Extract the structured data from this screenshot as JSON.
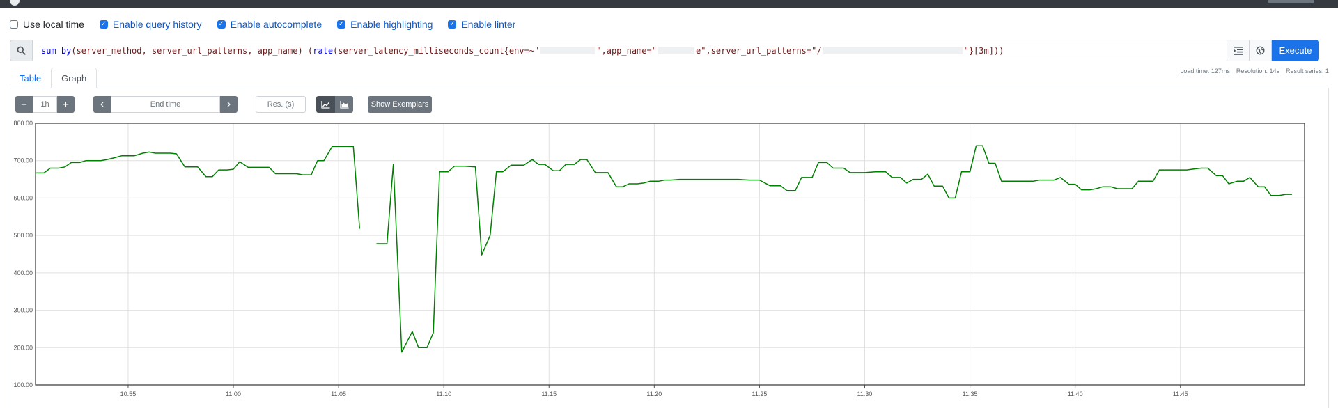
{
  "settings": [
    {
      "label": "Use local time",
      "checked": false
    },
    {
      "label": "Enable query history",
      "checked": true
    },
    {
      "label": "Enable autocomplete",
      "checked": true
    },
    {
      "label": "Enable highlighting",
      "checked": true
    },
    {
      "label": "Enable linter",
      "checked": true
    }
  ],
  "query": {
    "kw": "sum by",
    "part1": " (server_method, server_url_patterns, app_name) (",
    "fn": "rate",
    "part2": "(server_latency_milliseconds_count{env=~\"",
    "part3": "\",app_name=\"",
    "part4": "e\",server_url_patterns=\"/",
    "part5": "\"}[3m]))"
  },
  "buttons": {
    "execute": "Execute",
    "show_exemplars": "Show Exemplars"
  },
  "stats": {
    "load_time": "Load time: 127ms",
    "resolution": "Resolution: 14s",
    "result_series": "Result series: 1"
  },
  "tabs": [
    {
      "label": "Table"
    },
    {
      "label": "Graph"
    }
  ],
  "graph_controls": {
    "minus": "−",
    "range": "1h",
    "plus": "+",
    "prev": "‹",
    "end_time_placeholder": "End time",
    "next": "›",
    "res_placeholder": "Res. (s)"
  },
  "colors": {
    "line": "#008000",
    "accent": "#1a73e8",
    "grid": "#e0e0e0"
  },
  "chart_data": {
    "type": "line",
    "ylim": [
      100,
      800
    ],
    "yticks": [
      "800.00",
      "700.00",
      "600.00",
      "500.00",
      "400.00",
      "300.00",
      "200.00",
      "100.00"
    ],
    "xticks": [
      "10:55",
      "11:00",
      "11:05",
      "11:10",
      "11:15",
      "11:20",
      "11:25",
      "11:30",
      "11:35",
      "11:40",
      "11:45"
    ],
    "x_range_minutes": [
      10.6,
      70.9
    ],
    "x_tick_minutes": [
      15,
      20,
      25,
      30,
      35,
      40,
      45,
      50,
      55,
      60,
      65
    ],
    "grid": true,
    "series": [
      {
        "segments": [
          [
            [
              10.6,
              667
            ],
            [
              11.0,
              667
            ],
            [
              11.3,
              680
            ],
            [
              11.7,
              680
            ],
            [
              12.0,
              683
            ],
            [
              12.3,
              695
            ],
            [
              12.7,
              695
            ],
            [
              13.0,
              700
            ],
            [
              13.3,
              700
            ],
            [
              13.7,
              700
            ],
            [
              14.0,
              703
            ],
            [
              14.3,
              707
            ],
            [
              14.7,
              713
            ],
            [
              15.0,
              713
            ],
            [
              15.3,
              713
            ],
            [
              15.7,
              720
            ],
            [
              16.0,
              723
            ],
            [
              16.3,
              720
            ],
            [
              16.7,
              720
            ],
            [
              17.0,
              720
            ],
            [
              17.3,
              718
            ],
            [
              17.7,
              683
            ],
            [
              18.0,
              683
            ],
            [
              18.3,
              683
            ],
            [
              18.7,
              657
            ],
            [
              19.0,
              657
            ],
            [
              19.3,
              675
            ],
            [
              19.7,
              675
            ],
            [
              20.0,
              677
            ],
            [
              20.3,
              697
            ],
            [
              20.7,
              682
            ],
            [
              21.0,
              682
            ],
            [
              21.3,
              682
            ],
            [
              21.7,
              682
            ],
            [
              22.0,
              665
            ],
            [
              22.3,
              665
            ],
            [
              22.7,
              665
            ],
            [
              23.0,
              665
            ],
            [
              23.3,
              662
            ],
            [
              23.7,
              662
            ],
            [
              24.0,
              700
            ],
            [
              24.3,
              700
            ],
            [
              24.7,
              738
            ],
            [
              25.0,
              738
            ],
            [
              25.3,
              738
            ],
            [
              25.7,
              738
            ],
            [
              26.0,
              518
            ]
          ],
          [
            [
              26.8,
              478
            ],
            [
              27.3,
              478
            ],
            [
              27.6,
              690
            ],
            [
              28.0,
              188
            ],
            [
              28.5,
              243
            ],
            [
              28.8,
              200
            ],
            [
              29.2,
              200
            ],
            [
              29.5,
              240
            ],
            [
              29.8,
              670
            ],
            [
              30.2,
              670
            ],
            [
              30.5,
              685
            ],
            [
              31.0,
              685
            ],
            [
              31.5,
              683
            ],
            [
              31.8,
              448
            ],
            [
              32.2,
              500
            ],
            [
              32.5,
              670
            ],
            [
              32.8,
              670
            ],
            [
              33.2,
              688
            ],
            [
              33.5,
              688
            ],
            [
              33.8,
              688
            ],
            [
              34.2,
              703
            ],
            [
              34.5,
              690
            ],
            [
              34.8,
              690
            ],
            [
              35.2,
              673
            ],
            [
              35.5,
              673
            ],
            [
              35.8,
              690
            ],
            [
              36.2,
              690
            ],
            [
              36.5,
              703
            ],
            [
              36.8,
              703
            ],
            [
              37.2,
              668
            ],
            [
              37.5,
              668
            ],
            [
              37.8,
              668
            ],
            [
              38.2,
              630
            ],
            [
              38.5,
              630
            ],
            [
              38.8,
              638
            ],
            [
              39.2,
              638
            ],
            [
              39.5,
              640
            ],
            [
              39.8,
              645
            ],
            [
              40.2,
              645
            ],
            [
              40.5,
              648
            ],
            [
              40.8,
              648
            ],
            [
              41.2,
              650
            ],
            [
              41.5,
              650
            ],
            [
              42.0,
              650
            ],
            [
              42.5,
              650
            ],
            [
              43.0,
              650
            ],
            [
              43.5,
              650
            ],
            [
              44.0,
              650
            ],
            [
              44.5,
              648
            ],
            [
              45.0,
              648
            ],
            [
              45.5,
              633
            ],
            [
              46.0,
              633
            ],
            [
              46.3,
              620
            ],
            [
              46.7,
              620
            ],
            [
              47.0,
              655
            ],
            [
              47.5,
              655
            ],
            [
              47.8,
              695
            ],
            [
              48.2,
              695
            ],
            [
              48.5,
              680
            ],
            [
              49.0,
              680
            ],
            [
              49.3,
              668
            ],
            [
              49.7,
              668
            ],
            [
              50.0,
              668
            ],
            [
              50.5,
              670
            ],
            [
              51.0,
              670
            ],
            [
              51.3,
              655
            ],
            [
              51.7,
              655
            ],
            [
              52.0,
              640
            ],
            [
              52.3,
              650
            ],
            [
              52.7,
              650
            ],
            [
              53.0,
              664
            ],
            [
              53.3,
              632
            ],
            [
              53.7,
              632
            ],
            [
              54.0,
              600
            ],
            [
              54.3,
              600
            ],
            [
              54.6,
              670
            ],
            [
              55.0,
              670
            ],
            [
              55.3,
              740
            ],
            [
              55.6,
              740
            ],
            [
              55.9,
              693
            ],
            [
              56.2,
              693
            ],
            [
              56.5,
              645
            ],
            [
              57.0,
              645
            ],
            [
              57.5,
              645
            ],
            [
              58.0,
              645
            ],
            [
              58.3,
              648
            ],
            [
              58.7,
              648
            ],
            [
              59.0,
              648
            ],
            [
              59.3,
              655
            ],
            [
              59.7,
              637
            ],
            [
              60.0,
              637
            ],
            [
              60.3,
              622
            ],
            [
              60.7,
              622
            ],
            [
              61.0,
              625
            ],
            [
              61.3,
              630
            ],
            [
              61.7,
              630
            ],
            [
              62.0,
              625
            ],
            [
              62.3,
              625
            ],
            [
              62.7,
              625
            ],
            [
              63.0,
              645
            ],
            [
              63.3,
              645
            ],
            [
              63.7,
              645
            ],
            [
              64.0,
              675
            ],
            [
              64.3,
              675
            ],
            [
              64.7,
              675
            ],
            [
              65.0,
              675
            ],
            [
              65.3,
              675
            ],
            [
              65.7,
              678
            ],
            [
              66.0,
              680
            ],
            [
              66.3,
              680
            ],
            [
              66.7,
              660
            ],
            [
              67.0,
              660
            ],
            [
              67.3,
              638
            ],
            [
              67.7,
              645
            ],
            [
              68.0,
              645
            ],
            [
              68.3,
              655
            ],
            [
              68.7,
              630
            ],
            [
              69.0,
              630
            ],
            [
              69.3,
              607
            ],
            [
              69.7,
              607
            ],
            [
              70.0,
              610
            ],
            [
              70.3,
              610
            ]
          ]
        ]
      }
    ]
  }
}
